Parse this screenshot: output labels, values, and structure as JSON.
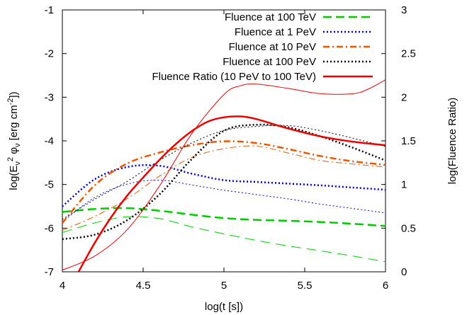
{
  "chart_data": {
    "type": "line",
    "xlabel": "log(t [s])",
    "ylabel_left": {
      "pre": "log(E",
      "sub1": "ν",
      "sup1": "2",
      "mid": " φ",
      "sub2": "ν",
      "post": " [erg cm",
      "sup2": "-2",
      "end": "])"
    },
    "ylabel_right": "log(Fluence Ratio)",
    "xlim": [
      4,
      6
    ],
    "ylim_left": [
      -7,
      -1
    ],
    "ylim_right": [
      0,
      3
    ],
    "x_ticks": [
      "4",
      "4.5",
      "5",
      "5.5",
      "6"
    ],
    "y_ticks_left": [
      "-7",
      "-6",
      "-5",
      "-4",
      "-3",
      "-2",
      "-1"
    ],
    "y_ticks_right": [
      "0",
      "0.5",
      "1",
      "1.5",
      "2",
      "2.5",
      "3"
    ],
    "legend_placement": "top-right",
    "series": [
      {
        "name": "Fluence at 100 TeV",
        "color": "#00cc00",
        "dash": "dashed",
        "axis": "left",
        "thick": {
          "x": [
            4.0,
            4.2,
            4.4,
            4.6,
            4.8,
            5.0,
            5.2,
            5.4,
            5.6,
            5.8,
            6.0
          ],
          "y": [
            -5.63,
            -5.56,
            -5.54,
            -5.6,
            -5.69,
            -5.77,
            -5.81,
            -5.83,
            -5.86,
            -5.9,
            -5.95
          ]
        },
        "thin": {
          "x": [
            4.0,
            4.2,
            4.4,
            4.6,
            4.8,
            5.0,
            5.2,
            5.4,
            5.6,
            5.8,
            6.0
          ],
          "y": [
            -6.1,
            -5.88,
            -5.74,
            -5.78,
            -5.97,
            -6.13,
            -6.28,
            -6.41,
            -6.52,
            -6.64,
            -6.77
          ]
        }
      },
      {
        "name": "Fluence at 1 PeV",
        "color": "#0000cc",
        "dash": "dotted",
        "axis": "left",
        "thick": {
          "x": [
            4.0,
            4.2,
            4.4,
            4.6,
            4.8,
            5.0,
            5.2,
            5.4,
            5.6,
            5.8,
            6.0
          ],
          "y": [
            -5.5,
            -4.88,
            -4.6,
            -4.57,
            -4.75,
            -4.9,
            -4.94,
            -4.98,
            -5.02,
            -5.07,
            -5.12
          ]
        },
        "thin": {
          "x": [
            4.0,
            4.2,
            4.4,
            4.6,
            4.8,
            5.0,
            5.2,
            5.4,
            5.6,
            5.8,
            6.0
          ],
          "y": [
            -5.85,
            -5.3,
            -4.99,
            -4.9,
            -5.01,
            -5.13,
            -5.23,
            -5.33,
            -5.45,
            -5.55,
            -5.65
          ]
        }
      },
      {
        "name": "Fluence at 10 PeV",
        "color": "#ee5500",
        "dash": "dashdot",
        "axis": "left",
        "thick": {
          "x": [
            4.0,
            4.2,
            4.4,
            4.6,
            4.8,
            5.0,
            5.2,
            5.4,
            5.6,
            5.8,
            6.0
          ],
          "y": [
            -5.88,
            -5.02,
            -4.52,
            -4.27,
            -4.1,
            -4.01,
            -4.05,
            -4.19,
            -4.35,
            -4.47,
            -4.55
          ]
        },
        "thin": {
          "x": [
            4.0,
            4.2,
            4.4,
            4.6,
            4.8,
            5.0,
            5.2,
            5.4,
            5.6,
            5.8,
            6.0
          ],
          "y": [
            -6.05,
            -5.73,
            -5.33,
            -4.81,
            -4.38,
            -4.18,
            -4.12,
            -4.28,
            -4.45,
            -4.53,
            -4.6
          ]
        }
      },
      {
        "name": "Fluence at 100 PeV",
        "color": "#000000",
        "dash": "dotted",
        "axis": "left",
        "thick": {
          "x": [
            4.0,
            4.2,
            4.4,
            4.6,
            4.8,
            5.0,
            5.2,
            5.4,
            5.6,
            5.8,
            6.0
          ],
          "y": [
            -6.25,
            -6.15,
            -5.82,
            -5.23,
            -4.42,
            -3.77,
            -3.63,
            -3.69,
            -3.9,
            -4.16,
            -4.45
          ]
        },
        "thin": {
          "x": [
            4.0,
            4.2,
            4.4,
            4.6,
            4.8,
            5.0,
            5.2,
            5.4,
            5.6,
            5.8,
            6.0
          ],
          "y": [
            -5.8,
            -5.34,
            -4.93,
            -4.45,
            -4.05,
            -3.76,
            -3.67,
            -3.65,
            -3.77,
            -3.94,
            -4.13
          ]
        }
      },
      {
        "name": "Fluence Ratio (10 PeV to 100 TeV)",
        "color": "#ee0000",
        "dash": "solid",
        "axis": "right",
        "thick": {
          "x": [
            4.1,
            4.2,
            4.3,
            4.4,
            4.5,
            4.6,
            4.7,
            4.8,
            4.9,
            5.0,
            5.1,
            5.2,
            5.4,
            5.6,
            5.8,
            6.0
          ],
          "y": [
            0.0,
            0.33,
            0.62,
            0.87,
            1.08,
            1.28,
            1.46,
            1.61,
            1.72,
            1.77,
            1.78,
            1.75,
            1.64,
            1.55,
            1.49,
            1.45
          ]
        },
        "thin": {
          "x": [
            4.0,
            4.2,
            4.4,
            4.6,
            4.8,
            5.0,
            5.1,
            5.2,
            5.4,
            5.6,
            5.8,
            5.9,
            6.0
          ],
          "y": [
            0.02,
            0.18,
            0.48,
            0.98,
            1.58,
            2.03,
            2.13,
            2.15,
            2.1,
            2.04,
            2.04,
            2.1,
            2.2
          ]
        }
      }
    ]
  }
}
